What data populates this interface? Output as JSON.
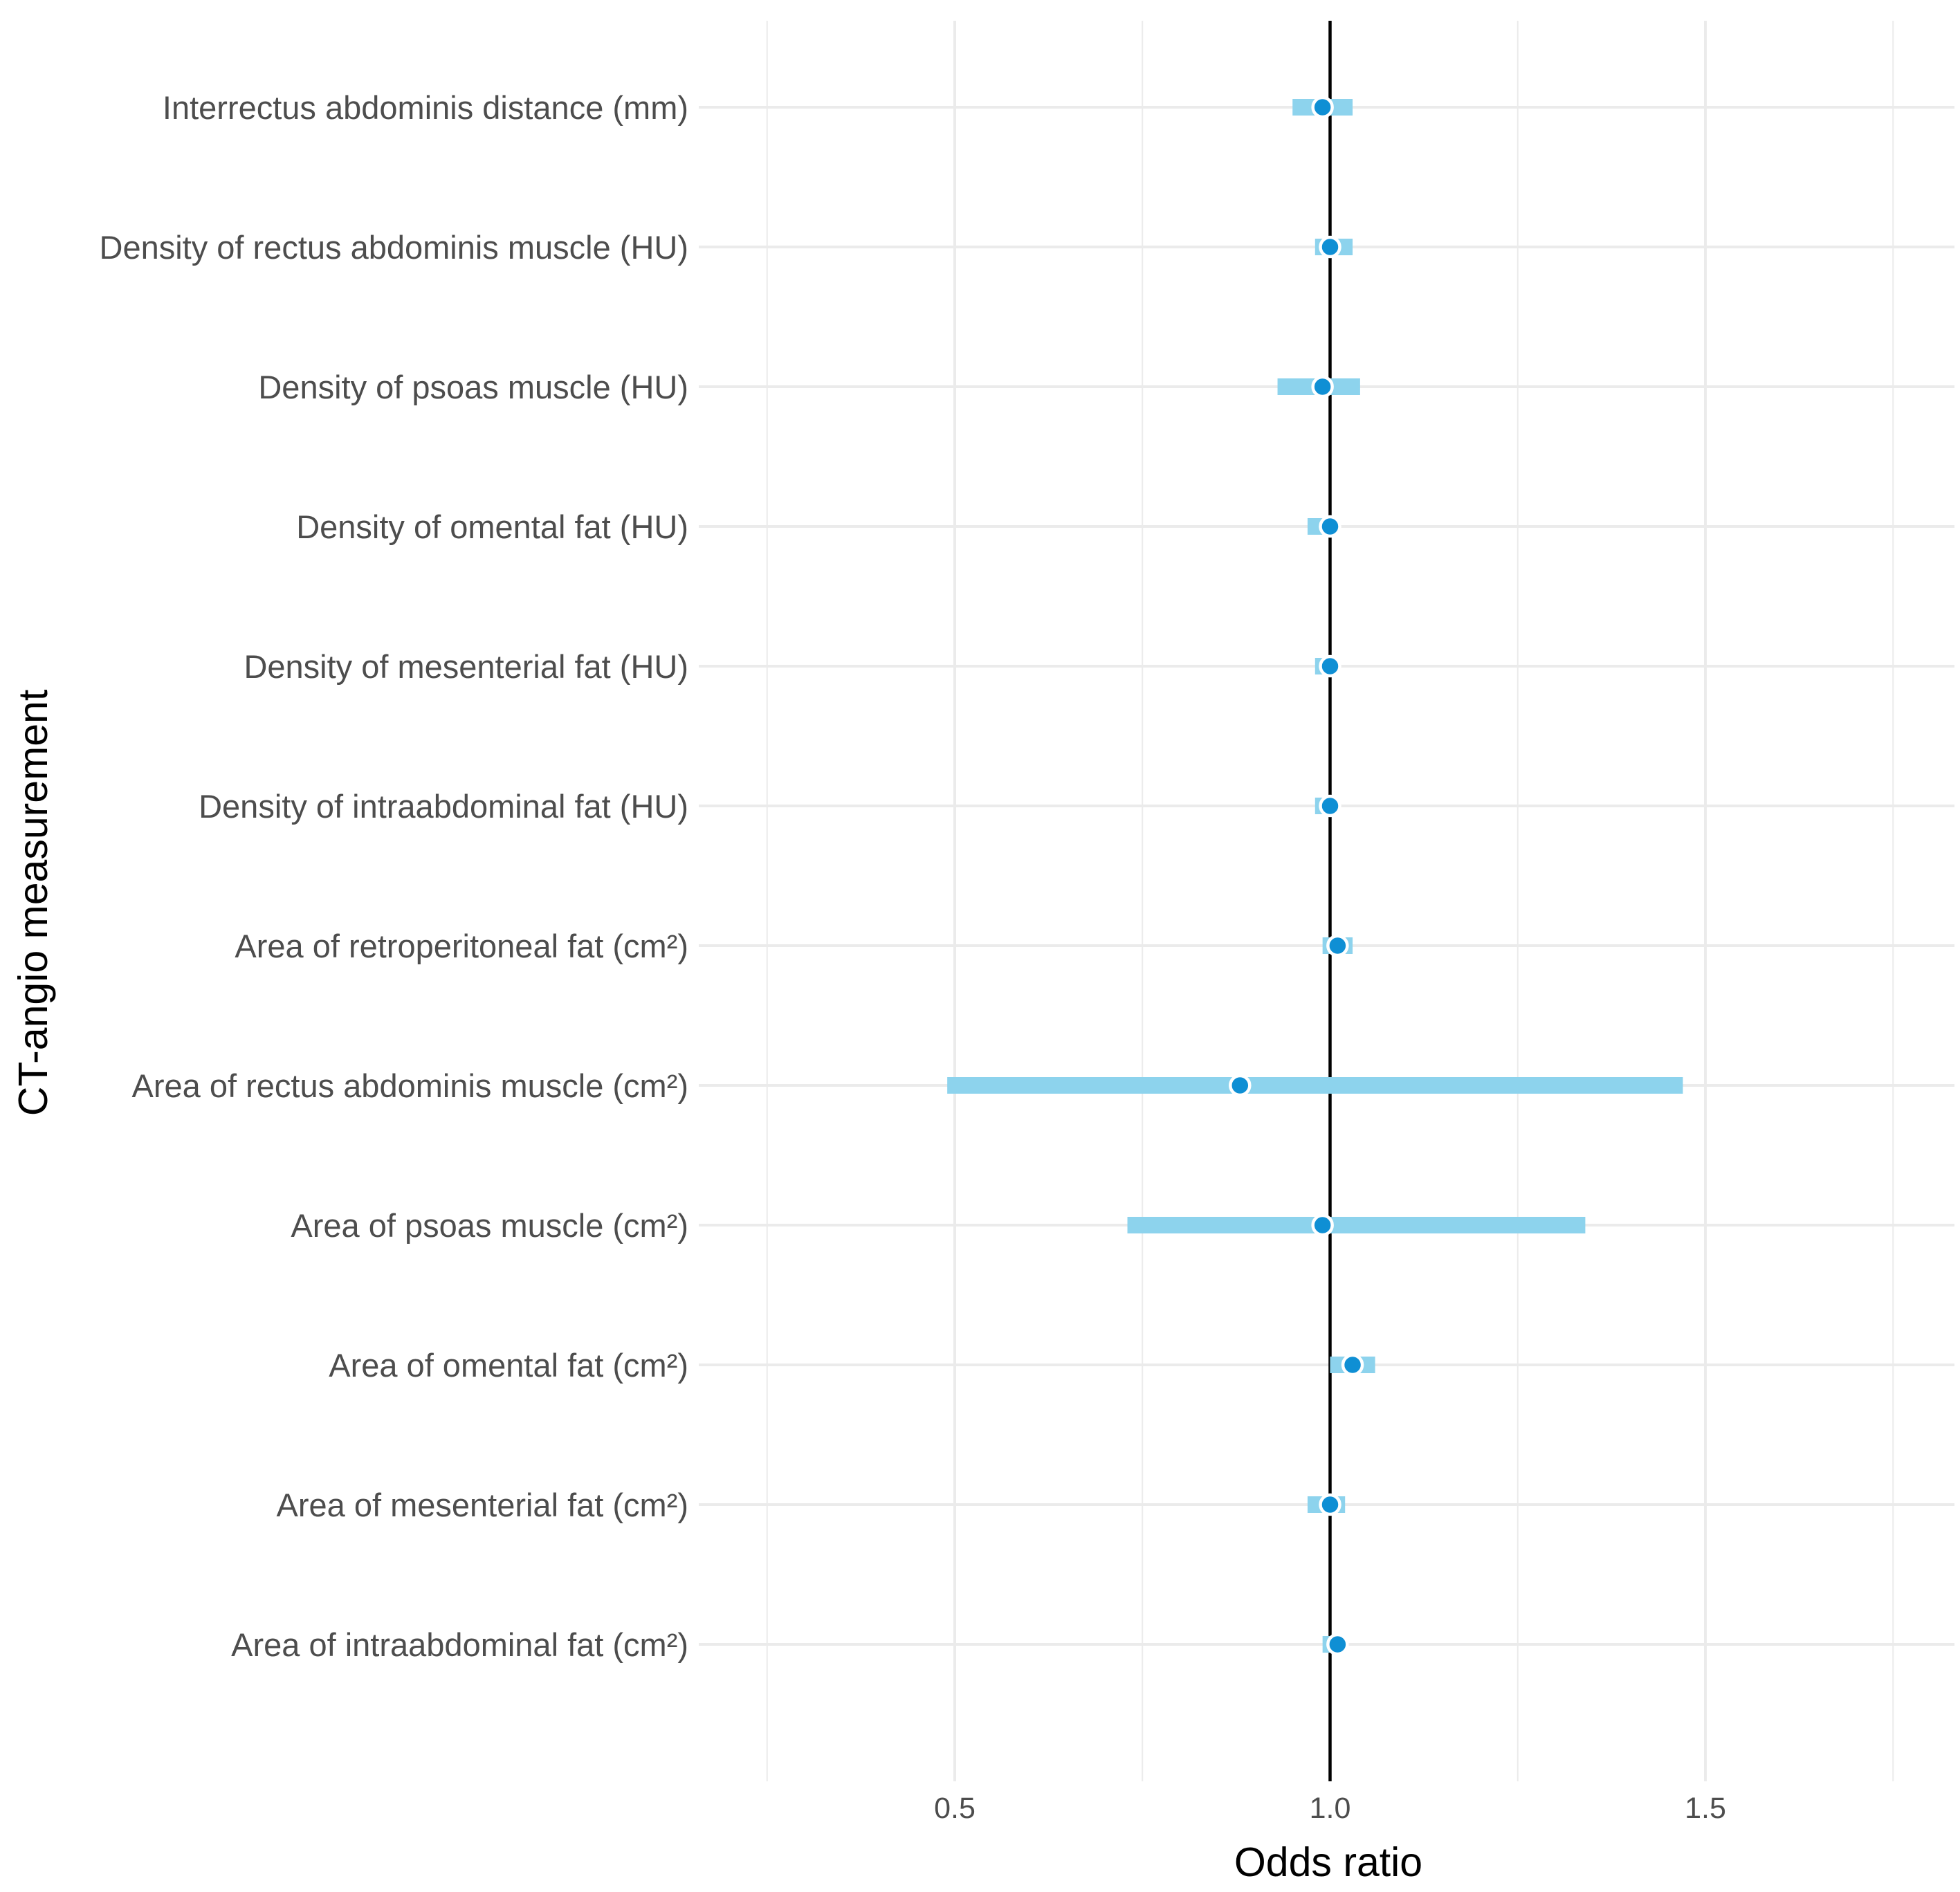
{
  "chart_data": {
    "type": "forest",
    "title": "",
    "xlabel": "Odds ratio",
    "ylabel": "CT-angio measurement",
    "xlim": [
      0.25,
      1.82
    ],
    "xticks": [
      0.5,
      1.0,
      1.5
    ],
    "xtick_labels": [
      "0.5",
      "1.0",
      "1.5"
    ],
    "x_minor_grid": [
      0.25,
      0.75,
      1.25,
      1.75
    ],
    "reference_line": 1.0,
    "rows": [
      {
        "label": "Interrectus abdominis distance (mm)",
        "or": 0.99,
        "ci_low": 0.95,
        "ci_high": 1.03
      },
      {
        "label": "Density of rectus abdominis muscle (HU)",
        "or": 1.0,
        "ci_low": 0.98,
        "ci_high": 1.03
      },
      {
        "label": "Density of psoas muscle (HU)",
        "or": 0.99,
        "ci_low": 0.93,
        "ci_high": 1.04
      },
      {
        "label": "Density of omental fat (HU)",
        "or": 1.0,
        "ci_low": 0.97,
        "ci_high": 1.01
      },
      {
        "label": "Density of mesenterial fat (HU)",
        "or": 1.0,
        "ci_low": 0.98,
        "ci_high": 1.01
      },
      {
        "label": "Density of intraabdominal fat (HU)",
        "or": 1.0,
        "ci_low": 0.98,
        "ci_high": 1.01
      },
      {
        "label": "Area of retroperitoneal fat (cm²)",
        "or": 1.01,
        "ci_low": 0.99,
        "ci_high": 1.03
      },
      {
        "label": "Area of rectus abdominis muscle (cm²)",
        "or": 0.88,
        "ci_low": 0.49,
        "ci_high": 1.47
      },
      {
        "label": "Area of psoas muscle (cm²)",
        "or": 0.99,
        "ci_low": 0.73,
        "ci_high": 1.34
      },
      {
        "label": "Area of omental fat (cm²)",
        "or": 1.03,
        "ci_low": 1.0,
        "ci_high": 1.06
      },
      {
        "label": "Area of mesenterial fat (cm²)",
        "or": 1.0,
        "ci_low": 0.97,
        "ci_high": 1.02
      },
      {
        "label": "Area of intraabdominal fat (cm²)",
        "or": 1.01,
        "ci_low": 0.99,
        "ci_high": 1.02
      }
    ],
    "colors": {
      "ci_bar": "#8dd3ed",
      "point": "#0f8fd4",
      "point_outline": "#ffffff",
      "reference_line": "#000000",
      "grid": "#ebebeb"
    }
  }
}
